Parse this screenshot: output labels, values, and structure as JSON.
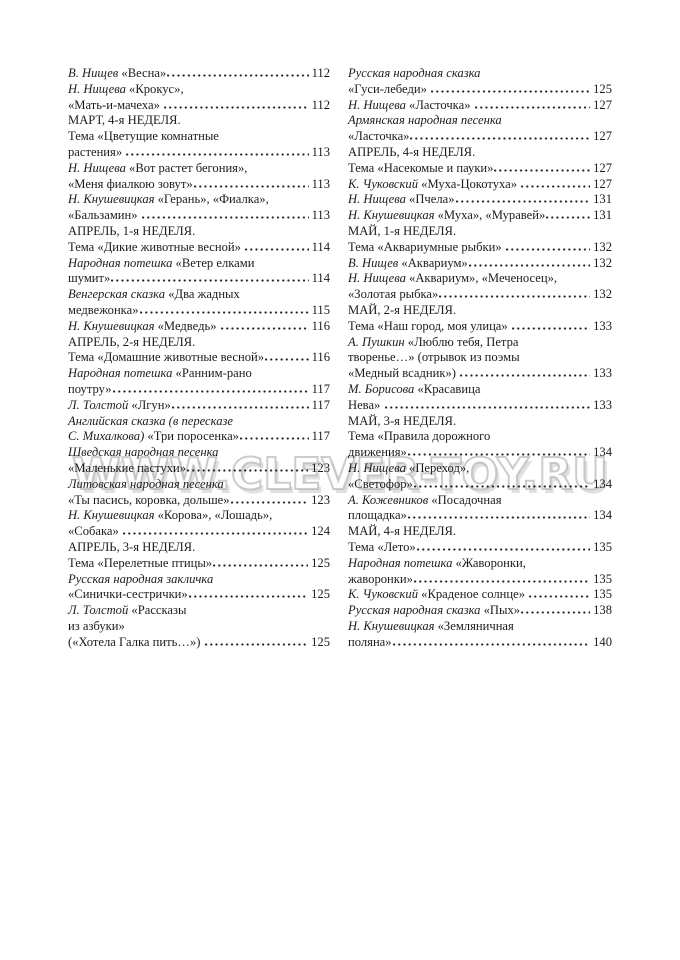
{
  "watermark": {
    "text": "WWW.CLEVER-TOY.RU",
    "outline_color": "#b0b0b0",
    "shadow_color": "#c6c6c6"
  },
  "text_color": "#1c1c1c",
  "columns": {
    "left": [
      {
        "s": [
          {
            "t": "В. Нищев",
            "i": true
          },
          {
            "t": " «Весна»",
            "i": false
          }
        ],
        "p": "112"
      },
      {
        "s": [
          {
            "t": "Н. Нищева",
            "i": true
          },
          {
            "t": " «Крокус»,",
            "i": false
          }
        ]
      },
      {
        "s": [
          {
            "t": "«Мать-и-мачеха» ",
            "i": false
          }
        ],
        "p": "112"
      },
      {
        "s": [
          {
            "t": "МАРТ, 4-я НЕДЕЛЯ.",
            "i": false
          }
        ]
      },
      {
        "s": [
          {
            "t": "Тема «Цветущие комнатные",
            "i": false
          }
        ]
      },
      {
        "s": [
          {
            "t": "растения» ",
            "i": false
          }
        ],
        "p": "113"
      },
      {
        "s": [
          {
            "t": "Н. Нищева",
            "i": true
          },
          {
            "t": " «Вот растет бегония»,",
            "i": false
          }
        ]
      },
      {
        "s": [
          {
            "t": "«Меня фиалкою зовут»",
            "i": false
          }
        ],
        "p": "113"
      },
      {
        "s": [
          {
            "t": "Н. Кнушевицкая",
            "i": true
          },
          {
            "t": " «Герань», «Фиалка»,",
            "i": false
          }
        ]
      },
      {
        "s": [
          {
            "t": "«Бальзамин» ",
            "i": false
          }
        ],
        "p": "113"
      },
      {
        "s": [
          {
            "t": "АПРЕЛЬ, 1-я НЕДЕЛЯ.",
            "i": false
          }
        ]
      },
      {
        "s": [
          {
            "t": "Тема «Дикие животные весной» ",
            "i": false
          }
        ],
        "p": "114"
      },
      {
        "s": [
          {
            "t": "Народная потешка",
            "i": true
          },
          {
            "t": " «Ветер елками",
            "i": false
          }
        ]
      },
      {
        "s": [
          {
            "t": "шумит»",
            "i": false
          }
        ],
        "p": "114"
      },
      {
        "s": [
          {
            "t": "Венгерская сказка",
            "i": true
          },
          {
            "t": " «Два жадных",
            "i": false
          }
        ]
      },
      {
        "s": [
          {
            "t": "медвежонка»",
            "i": false
          }
        ],
        "p": "115"
      },
      {
        "s": [
          {
            "t": "Н. Кнушевицкая",
            "i": true
          },
          {
            "t": " «Медведь» ",
            "i": false
          }
        ],
        "p": "116"
      },
      {
        "s": [
          {
            "t": "АПРЕЛЬ, 2-я НЕДЕЛЯ.",
            "i": false
          }
        ]
      },
      {
        "s": [
          {
            "t": "Тема «Домашние животные весной»",
            "i": false
          }
        ],
        "p": "116"
      },
      {
        "s": [
          {
            "t": "Народная потешка",
            "i": true
          },
          {
            "t": " «Ранним-рано",
            "i": false
          }
        ]
      },
      {
        "s": [
          {
            "t": "поутру»",
            "i": false
          }
        ],
        "p": "117"
      },
      {
        "s": [
          {
            "t": "Л. Толстой",
            "i": true
          },
          {
            "t": " «Лгун»",
            "i": false
          }
        ],
        "p": "117"
      },
      {
        "s": [
          {
            "t": "Английская сказка (в пересказе",
            "i": true
          }
        ]
      },
      {
        "s": [
          {
            "t": "С. Михалкова)",
            "i": true
          },
          {
            "t": " «Три поросенка»",
            "i": false
          }
        ],
        "p": "117"
      },
      {
        "s": [
          {
            "t": "Шведская народная песенка",
            "i": true
          }
        ]
      },
      {
        "s": [
          {
            "t": "«Маленькие пастухи»",
            "i": false
          }
        ],
        "p": "123"
      },
      {
        "s": [
          {
            "t": "Литовская народная песенка",
            "i": true
          }
        ]
      },
      {
        "s": [
          {
            "t": "«Ты пасись, коровка, дольше»",
            "i": false
          }
        ],
        "p": "123"
      },
      {
        "s": [
          {
            "t": "Н. Кнушевицкая",
            "i": true
          },
          {
            "t": " «Корова», «Лошадь»,",
            "i": false
          }
        ]
      },
      {
        "s": [
          {
            "t": "«Собака» ",
            "i": false
          }
        ],
        "p": "124"
      },
      {
        "s": [
          {
            "t": "АПРЕЛЬ, 3-я НЕДЕЛЯ.",
            "i": false
          }
        ]
      },
      {
        "s": [
          {
            "t": "Тема «Перелетные птицы»",
            "i": false
          }
        ],
        "p": "125"
      },
      {
        "s": [
          {
            "t": "Русская народная закличка",
            "i": true
          }
        ]
      },
      {
        "s": [
          {
            "t": "«Синички-сестрички»",
            "i": false
          }
        ],
        "p": "125"
      },
      {
        "s": [
          {
            "t": "Л. Толстой",
            "i": true
          },
          {
            "t": " «Рассказы",
            "i": false
          }
        ]
      },
      {
        "s": [
          {
            "t": "из азбуки»",
            "i": false
          }
        ]
      },
      {
        "s": [
          {
            "t": "(«Хотела Галка пить…») ",
            "i": false
          }
        ],
        "p": "125"
      }
    ],
    "right": [
      {
        "s": [
          {
            "t": "Русская народная сказка",
            "i": true
          }
        ]
      },
      {
        "s": [
          {
            "t": "«Гуси-лебеди» ",
            "i": false
          }
        ],
        "p": "125"
      },
      {
        "s": [
          {
            "t": "Н. Нищева",
            "i": true
          },
          {
            "t": " «Ласточка» ",
            "i": false
          }
        ],
        "p": "127"
      },
      {
        "s": [
          {
            "t": "Армянская народная песенка",
            "i": true
          }
        ]
      },
      {
        "s": [
          {
            "t": "«Ласточка»",
            "i": false
          }
        ],
        "p": "127"
      },
      {
        "s": [
          {
            "t": "АПРЕЛЬ, 4-я НЕДЕЛЯ.",
            "i": false
          }
        ]
      },
      {
        "s": [
          {
            "t": "Тема «Насекомые и пауки»",
            "i": false
          }
        ],
        "p": "127"
      },
      {
        "s": [
          {
            "t": "К. Чуковский",
            "i": true
          },
          {
            "t": " «Муха-Цокотуха» ",
            "i": false
          }
        ],
        "p": "127"
      },
      {
        "s": [
          {
            "t": "Н. Нищева",
            "i": true
          },
          {
            "t": " «Пчела»",
            "i": false
          }
        ],
        "p": "131"
      },
      {
        "s": [
          {
            "t": "Н. Кнушевицкая",
            "i": true
          },
          {
            "t": " «Муха», «Муравей»",
            "i": false
          }
        ],
        "p": "131"
      },
      {
        "s": [
          {
            "t": "МАЙ, 1-я НЕДЕЛЯ.",
            "i": false
          }
        ]
      },
      {
        "s": [
          {
            "t": "Тема «Аквариумные рыбки» ",
            "i": false
          }
        ],
        "p": "132"
      },
      {
        "s": [
          {
            "t": "В. Нищев",
            "i": true
          },
          {
            "t": " «Аквариум»",
            "i": false
          }
        ],
        "p": "132"
      },
      {
        "s": [
          {
            "t": "Н. Нищева",
            "i": true
          },
          {
            "t": " «Аквариум», «Меченосец»,",
            "i": false
          }
        ]
      },
      {
        "s": [
          {
            "t": "«Золотая рыбка»",
            "i": false
          }
        ],
        "p": "132"
      },
      {
        "s": [
          {
            "t": "МАЙ, 2-я НЕДЕЛЯ.",
            "i": false
          }
        ]
      },
      {
        "s": [
          {
            "t": "Тема «Наш город, моя улица» ",
            "i": false
          }
        ],
        "p": "133"
      },
      {
        "s": [
          {
            "t": "А. Пушкин",
            "i": true
          },
          {
            "t": " «Люблю тебя, Петра",
            "i": false
          }
        ]
      },
      {
        "s": [
          {
            "t": "творенье…» (отрывок из поэмы",
            "i": false
          }
        ]
      },
      {
        "s": [
          {
            "t": "«Медный всадник») ",
            "i": false
          }
        ],
        "p": "133"
      },
      {
        "s": [
          {
            "t": "М. Борисова",
            "i": true
          },
          {
            "t": " «Красавица",
            "i": false
          }
        ]
      },
      {
        "s": [
          {
            "t": "Нева» ",
            "i": false
          }
        ],
        "p": "133"
      },
      {
        "s": [
          {
            "t": "МАЙ, 3-я НЕДЕЛЯ.",
            "i": false
          }
        ]
      },
      {
        "s": [
          {
            "t": "Тема «Правила дорожного",
            "i": false
          }
        ]
      },
      {
        "s": [
          {
            "t": "движения»",
            "i": false
          }
        ],
        "p": "134"
      },
      {
        "s": [
          {
            "t": "Н. Нищева",
            "i": true
          },
          {
            "t": " «Переход»,",
            "i": false
          }
        ]
      },
      {
        "s": [
          {
            "t": "«Светофор»",
            "i": false
          }
        ],
        "p": "134"
      },
      {
        "s": [
          {
            "t": "А. Кожевников",
            "i": true
          },
          {
            "t": " «Посадочная",
            "i": false
          }
        ]
      },
      {
        "s": [
          {
            "t": "площадка»",
            "i": false
          }
        ],
        "p": "134"
      },
      {
        "s": [
          {
            "t": "МАЙ, 4-я НЕДЕЛЯ.",
            "i": false
          }
        ]
      },
      {
        "s": [
          {
            "t": "Тема «Лето»",
            "i": false
          }
        ],
        "p": "135"
      },
      {
        "s": [
          {
            "t": "Народная потешка",
            "i": true
          },
          {
            "t": " «Жаворонки,",
            "i": false
          }
        ]
      },
      {
        "s": [
          {
            "t": "жаворонки»",
            "i": false
          }
        ],
        "p": "135"
      },
      {
        "s": [
          {
            "t": "К. Чуковский",
            "i": true
          },
          {
            "t": " «Краденое солнце» ",
            "i": false
          }
        ],
        "p": "135"
      },
      {
        "s": [
          {
            "t": "Русская народная сказка",
            "i": true
          },
          {
            "t": " «Пых»",
            "i": false
          }
        ],
        "p": "138"
      },
      {
        "s": [
          {
            "t": "Н. Кнушевицкая",
            "i": true
          },
          {
            "t": " «Земляничная",
            "i": false
          }
        ]
      },
      {
        "s": [
          {
            "t": "поляна»",
            "i": false
          }
        ],
        "p": "140"
      }
    ]
  }
}
